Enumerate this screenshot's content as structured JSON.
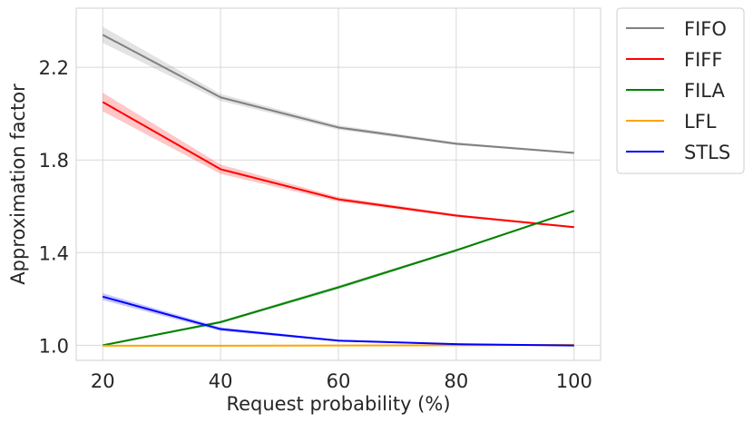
{
  "chart_data": {
    "type": "line",
    "title": "",
    "xlabel": "Request probability (%)",
    "ylabel": "Approximation factor",
    "x": [
      20,
      40,
      60,
      80,
      100
    ],
    "x_ticks": [
      20,
      40,
      60,
      80,
      100
    ],
    "y_ticks": [
      1.0,
      1.4,
      1.8,
      2.2
    ],
    "y_tick_labels": [
      "1.0",
      "1.4",
      "1.8",
      "2.2"
    ],
    "xlim": [
      15.5,
      104.5
    ],
    "ylim": [
      0.935,
      2.455
    ],
    "grid": true,
    "legend_position": "outside-top-right",
    "series": [
      {
        "name": "FIFO",
        "color": "#808080",
        "values": [
          2.34,
          2.07,
          1.94,
          1.87,
          1.83
        ],
        "band": [
          0.035,
          0.015,
          0.01,
          0.006,
          0.004
        ]
      },
      {
        "name": "FIFF",
        "color": "#ff0000",
        "values": [
          2.05,
          1.76,
          1.63,
          1.56,
          1.51
        ],
        "band": [
          0.04,
          0.02,
          0.01,
          0.006,
          0.004
        ]
      },
      {
        "name": "FILA",
        "color": "#008000",
        "values": [
          1.0,
          1.1,
          1.25,
          1.41,
          1.58
        ],
        "band": [
          0.003,
          0.006,
          0.008,
          0.005,
          0.004
        ]
      },
      {
        "name": "LFL",
        "color": "#ffa500",
        "values": [
          0.998,
          0.998,
          0.999,
          1.0,
          1.002
        ],
        "band": [
          0.002,
          0.002,
          0.002,
          0.002,
          0.002
        ]
      },
      {
        "name": "STLS",
        "color": "#0000ff",
        "values": [
          1.21,
          1.07,
          1.02,
          1.005,
          0.999
        ],
        "band": [
          0.015,
          0.008,
          0.004,
          0.003,
          0.002
        ]
      }
    ]
  }
}
